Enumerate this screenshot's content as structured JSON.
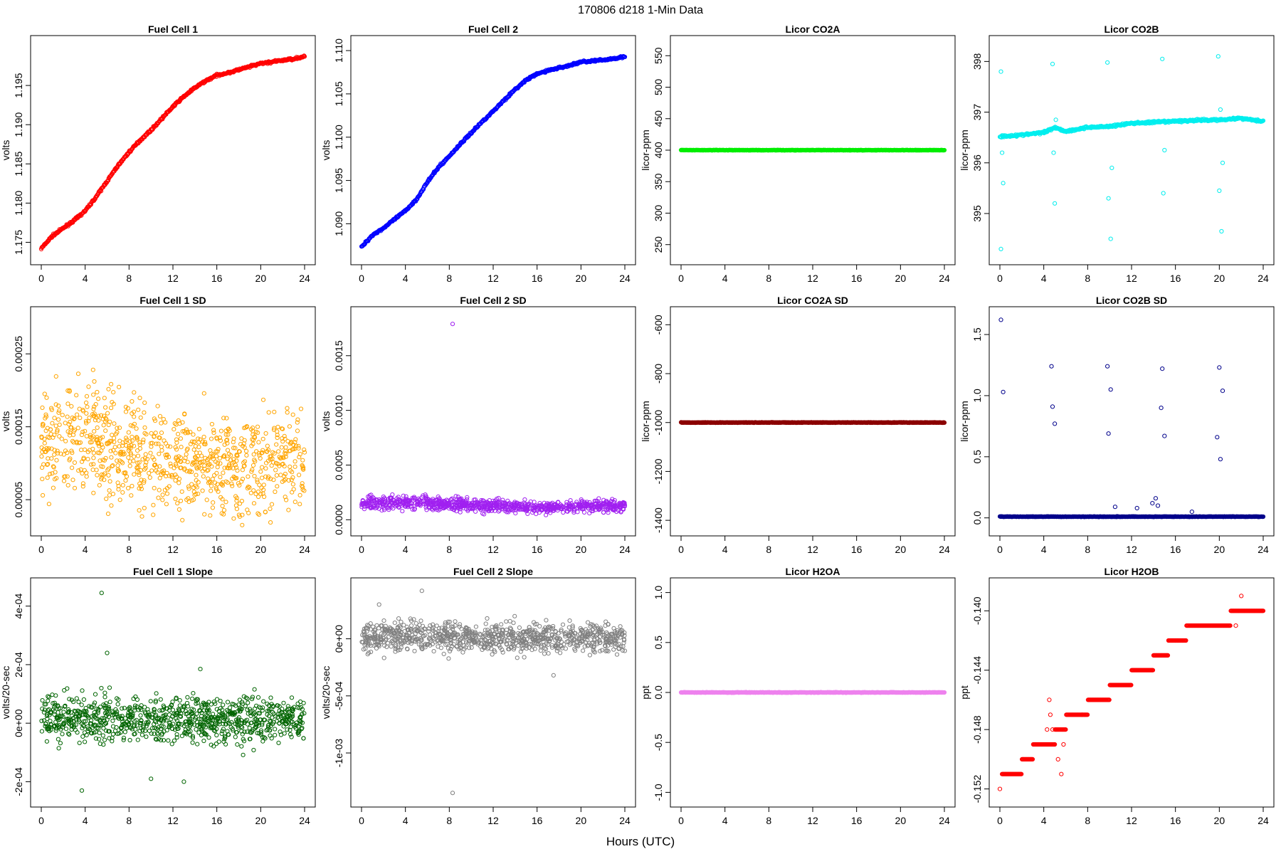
{
  "figure": {
    "title": "170806   d218   1-Min Data",
    "xlabel": "Hours (UTC)"
  },
  "chart_data": [
    {
      "panel": "fc1",
      "type": "scatter",
      "title": "Fuel Cell 1",
      "ylabel": "volts",
      "color": "#ff0000",
      "xlim": [
        0,
        24
      ],
      "ylim": [
        1.1735,
        1.2
      ],
      "xticks": [
        0,
        4,
        8,
        12,
        16,
        20,
        24
      ],
      "yticks": [
        1.175,
        1.18,
        1.185,
        1.19,
        1.195
      ],
      "ytick_labels": [
        "1.175",
        "1.180",
        "1.185",
        "1.190",
        "1.195"
      ],
      "series": [
        {
          "x": [
            0,
            1,
            2,
            3,
            4,
            5,
            6,
            7,
            8,
            9,
            10,
            11,
            12,
            13,
            14,
            15,
            16,
            17,
            18,
            19,
            20,
            21,
            22,
            23,
            24
          ],
          "y": [
            1.1742,
            1.1758,
            1.1768,
            1.1778,
            1.179,
            1.1808,
            1.1828,
            1.1848,
            1.1865,
            1.188,
            1.1893,
            1.1908,
            1.1923,
            1.1936,
            1.1947,
            1.1956,
            1.1963,
            1.1966,
            1.197,
            1.1974,
            1.1978,
            1.198,
            1.1982,
            1.1984,
            1.1987
          ]
        }
      ],
      "style": "band"
    },
    {
      "panel": "fc2",
      "type": "scatter",
      "title": "Fuel Cell 2",
      "ylabel": "volts",
      "color": "#0000ff",
      "xlim": [
        0,
        24
      ],
      "ylim": [
        1.0865,
        1.1105
      ],
      "xticks": [
        0,
        4,
        8,
        12,
        16,
        20,
        24
      ],
      "yticks": [
        1.09,
        1.095,
        1.1,
        1.105,
        1.11
      ],
      "ytick_labels": [
        "1.090",
        "1.095",
        "1.100",
        "1.105",
        "1.110"
      ],
      "series": [
        {
          "x": [
            0,
            1,
            2,
            3,
            4,
            5,
            6,
            7,
            8,
            9,
            10,
            11,
            12,
            13,
            14,
            15,
            16,
            17,
            18,
            19,
            20,
            21,
            22,
            23,
            24
          ],
          "y": [
            1.0873,
            1.0887,
            1.0895,
            1.0905,
            1.0915,
            1.0928,
            1.0948,
            1.0965,
            1.0978,
            1.0992,
            1.1005,
            1.1018,
            1.103,
            1.1043,
            1.1055,
            1.1066,
            1.1073,
            1.1077,
            1.108,
            1.1083,
            1.1087,
            1.1088,
            1.1089,
            1.1091,
            1.1093
          ]
        }
      ],
      "style": "band"
    },
    {
      "panel": "co2a",
      "type": "scatter",
      "title": "Licor CO2A",
      "ylabel": "licor-ppm",
      "color": "#00ee00",
      "xlim": [
        0,
        24
      ],
      "ylim": [
        235,
        565
      ],
      "xticks": [
        0,
        4,
        8,
        12,
        16,
        20,
        24
      ],
      "yticks": [
        250,
        300,
        350,
        400,
        450,
        500,
        550
      ],
      "ytick_labels": [
        "250",
        "300",
        "350",
        "400",
        "450",
        "500",
        "550"
      ],
      "series": [
        {
          "x": [
            0,
            24
          ],
          "y": [
            400,
            400
          ]
        }
      ],
      "style": "flat"
    },
    {
      "panel": "co2b",
      "type": "scatter",
      "title": "Licor CO2B",
      "ylabel": "licor-ppm",
      "color": "#00eeee",
      "xlim": [
        0,
        24
      ],
      "ylim": [
        394.2,
        398.3
      ],
      "xticks": [
        0,
        4,
        8,
        12,
        16,
        20,
        24
      ],
      "yticks": [
        395,
        396,
        397,
        398
      ],
      "ytick_labels": [
        "395",
        "396",
        "397",
        "398"
      ],
      "series": [
        {
          "x": [
            0,
            2,
            4,
            5,
            6,
            8,
            10,
            12,
            14,
            16,
            18,
            20,
            22,
            24
          ],
          "y": [
            396.52,
            396.55,
            396.6,
            396.7,
            396.62,
            396.7,
            396.72,
            396.78,
            396.8,
            396.82,
            396.84,
            396.85,
            396.88,
            396.82
          ]
        }
      ],
      "outliers": {
        "x": [
          0.1,
          0.1,
          0.2,
          0.3,
          4.8,
          4.9,
          5.0,
          5.1,
          9.8,
          9.9,
          10.1,
          10.2,
          14.8,
          14.9,
          15.0,
          19.9,
          20.0,
          20.1,
          20.2,
          20.3
        ],
        "y": [
          397.8,
          394.3,
          396.2,
          395.6,
          397.95,
          396.2,
          395.2,
          396.85,
          397.98,
          395.3,
          394.5,
          395.9,
          398.05,
          395.4,
          396.25,
          398.1,
          395.45,
          397.05,
          394.65,
          396.0
        ]
      },
      "style": "band_outliers"
    },
    {
      "panel": "fc1sd",
      "type": "scatter",
      "title": "Fuel Cell 1 SD",
      "ylabel": "volts",
      "color": "#ffa500",
      "xlim": [
        0,
        24
      ],
      "ylim": [
        1.5e-05,
        0.0003
      ],
      "xticks": [
        0,
        4,
        8,
        12,
        16,
        20,
        24
      ],
      "yticks": [
        5e-05,
        0.00015,
        0.00025
      ],
      "ytick_labels": [
        "0.00005",
        "0.00015",
        "0.00025"
      ],
      "series": [
        {
          "x": [
            0,
            4,
            8,
            12,
            16,
            20,
            24
          ],
          "y": [
            0.00013,
            0.000135,
            0.000115,
            0.000105,
            9.5e-05,
            0.0001,
            0.00011
          ]
        }
      ],
      "spread": 5e-05,
      "style": "cloud"
    },
    {
      "panel": "fc2sd",
      "type": "scatter",
      "title": "Fuel Cell 2 SD",
      "ylabel": "volts",
      "color": "#a020f0",
      "xlim": [
        0,
        24
      ],
      "ylim": [
        -5e-05,
        0.00185
      ],
      "xticks": [
        0,
        4,
        8,
        12,
        16,
        20,
        24
      ],
      "yticks": [
        0,
        0.0005,
        0.001,
        0.0015
      ],
      "ytick_labels": [
        "0.0000",
        "0.0005",
        "0.0010",
        "0.0015"
      ],
      "series": [
        {
          "x": [
            0,
            4,
            8,
            12,
            16,
            20,
            24
          ],
          "y": [
            0.00015,
            0.00016,
            0.00014,
            0.00013,
            0.00011,
            0.00012,
            0.00013
          ]
        }
      ],
      "spread": 4e-05,
      "outliers": {
        "x": [
          8.3
        ],
        "y": [
          0.00179
        ]
      },
      "style": "cloud"
    },
    {
      "panel": "co2asd",
      "type": "scatter",
      "title": "Licor CO2A SD",
      "ylabel": "licor-ppm",
      "color": "#8b0000",
      "xlim": [
        0,
        24
      ],
      "ylim": [
        -1420,
        -570
      ],
      "xticks": [
        0,
        4,
        8,
        12,
        16,
        20,
        24
      ],
      "yticks": [
        -1400,
        -1200,
        -1000,
        -800,
        -600
      ],
      "ytick_labels": [
        "-1400",
        "-1200",
        "-1000",
        "-800",
        "-600"
      ],
      "series": [
        {
          "x": [
            0,
            24
          ],
          "y": [
            -1000,
            -1000
          ]
        }
      ],
      "style": "flat"
    },
    {
      "panel": "co2bsd",
      "type": "scatter",
      "title": "Licor CO2B SD",
      "ylabel": "licor-ppm",
      "color": "#00008b",
      "xlim": [
        0,
        24
      ],
      "ylim": [
        -0.06,
        1.64
      ],
      "xticks": [
        0,
        4,
        8,
        12,
        16,
        20,
        24
      ],
      "yticks": [
        0,
        0.5,
        1,
        1.5
      ],
      "ytick_labels": [
        "0.0",
        "0.5",
        "1.0",
        "1.5"
      ],
      "series": [
        {
          "x": [
            0,
            24
          ],
          "y": [
            0.01,
            0.01
          ]
        }
      ],
      "outliers": {
        "x": [
          0.1,
          0.3,
          4.7,
          4.8,
          5.0,
          9.8,
          9.9,
          10.1,
          14.7,
          14.8,
          15.0,
          19.8,
          20.0,
          20.1,
          20.3,
          10.5,
          12.5,
          13.9,
          14.2,
          14.4,
          17.5
        ],
        "y": [
          1.62,
          1.03,
          1.24,
          0.91,
          0.77,
          1.24,
          0.69,
          1.05,
          0.9,
          1.22,
          0.67,
          0.66,
          1.23,
          0.48,
          1.04,
          0.09,
          0.08,
          0.12,
          0.16,
          0.1,
          0.05
        ]
      },
      "style": "flat_outliers"
    },
    {
      "panel": "fc1slope",
      "type": "scatter",
      "title": "Fuel Cell 1 Slope",
      "ylabel": "volts/20-sec",
      "color": "#006400",
      "xlim": [
        0,
        24
      ],
      "ylim": [
        -0.00025,
        0.00046
      ],
      "xticks": [
        0,
        4,
        8,
        12,
        16,
        20,
        24
      ],
      "yticks": [
        -0.0002,
        0,
        0.0002,
        0.0004
      ],
      "ytick_labels": [
        "-2e-04",
        "0e+00",
        "2e-04",
        "4e-04"
      ],
      "series": [
        {
          "x": [
            0,
            24
          ],
          "y": [
            1.5e-05,
            1.5e-05
          ]
        }
      ],
      "spread": 5.5e-05,
      "outliers": {
        "x": [
          5.5,
          6.0,
          14.5,
          3.7,
          10.0,
          13.0
        ],
        "y": [
          0.000445,
          0.00024,
          0.000185,
          -0.00023,
          -0.00019,
          -0.0002
        ]
      },
      "style": "cloud"
    },
    {
      "panel": "fc2slope",
      "type": "scatter",
      "title": "Fuel Cell 2 Slope",
      "ylabel": "volts/20-sec",
      "color": "#808080",
      "xlim": [
        0,
        24
      ],
      "ylim": [
        -0.00138,
        0.00044
      ],
      "xticks": [
        0,
        4,
        8,
        12,
        16,
        20,
        24
      ],
      "yticks": [
        -0.001,
        -0.0005,
        0
      ],
      "ytick_labels": [
        "-1e-03",
        "-5e-04",
        "0e+00"
      ],
      "series": [
        {
          "x": [
            0,
            24
          ],
          "y": [
            1e-05,
            1e-05
          ]
        }
      ],
      "spread": 9e-05,
      "outliers": {
        "x": [
          8.3,
          5.5,
          1.6,
          17.5
        ],
        "y": [
          -0.00135,
          0.00042,
          0.0003,
          -0.00032
        ]
      },
      "style": "cloud"
    },
    {
      "panel": "h2oa",
      "type": "scatter",
      "title": "Licor H2OA",
      "ylabel": "ppt",
      "color": "#ee82ee",
      "xlim": [
        0,
        24
      ],
      "ylim": [
        -1.04,
        1.04
      ],
      "xticks": [
        0,
        4,
        8,
        12,
        16,
        20,
        24
      ],
      "yticks": [
        -1,
        -0.5,
        0,
        0.5,
        1
      ],
      "ytick_labels": [
        "-1.0",
        "-0.5",
        "0.0",
        "0.5",
        "1.0"
      ],
      "series": [
        {
          "x": [
            0,
            24
          ],
          "y": [
            0,
            0
          ]
        }
      ],
      "style": "flat"
    },
    {
      "panel": "h2ob",
      "type": "scatter",
      "title": "Licor H2OB",
      "ylabel": "ppt",
      "color": "#ff0000",
      "xlim": [
        0,
        24
      ],
      "ylim": [
        -0.1525,
        -0.1385
      ],
      "xticks": [
        0,
        4,
        8,
        12,
        16,
        20,
        24
      ],
      "yticks": [
        -0.152,
        -0.148,
        -0.144,
        -0.14
      ],
      "ytick_labels": [
        "-0.152",
        "-0.148",
        "-0.144",
        "-0.140"
      ],
      "series": [
        {
          "x": [
            0.2,
            2,
            3,
            4,
            6,
            8,
            10,
            12,
            14,
            16,
            18,
            20,
            22,
            24
          ],
          "y": [
            -0.1515,
            -0.1505,
            -0.1495,
            -0.1495,
            -0.1475,
            -0.1465,
            -0.1455,
            -0.1445,
            -0.1435,
            -0.142,
            -0.141,
            -0.141,
            -0.14,
            -0.14
          ]
        }
      ],
      "outliers": {
        "x": [
          0.0,
          4.5,
          4.8,
          5.0,
          5.3,
          5.6,
          5.8,
          4.3,
          4.6,
          7.5,
          22.0,
          21.5
        ],
        "y": [
          -0.152,
          -0.146,
          -0.148,
          -0.149,
          -0.15,
          -0.151,
          -0.149,
          -0.148,
          -0.147,
          -0.147,
          -0.139,
          -0.141
        ]
      },
      "style": "steps"
    }
  ]
}
